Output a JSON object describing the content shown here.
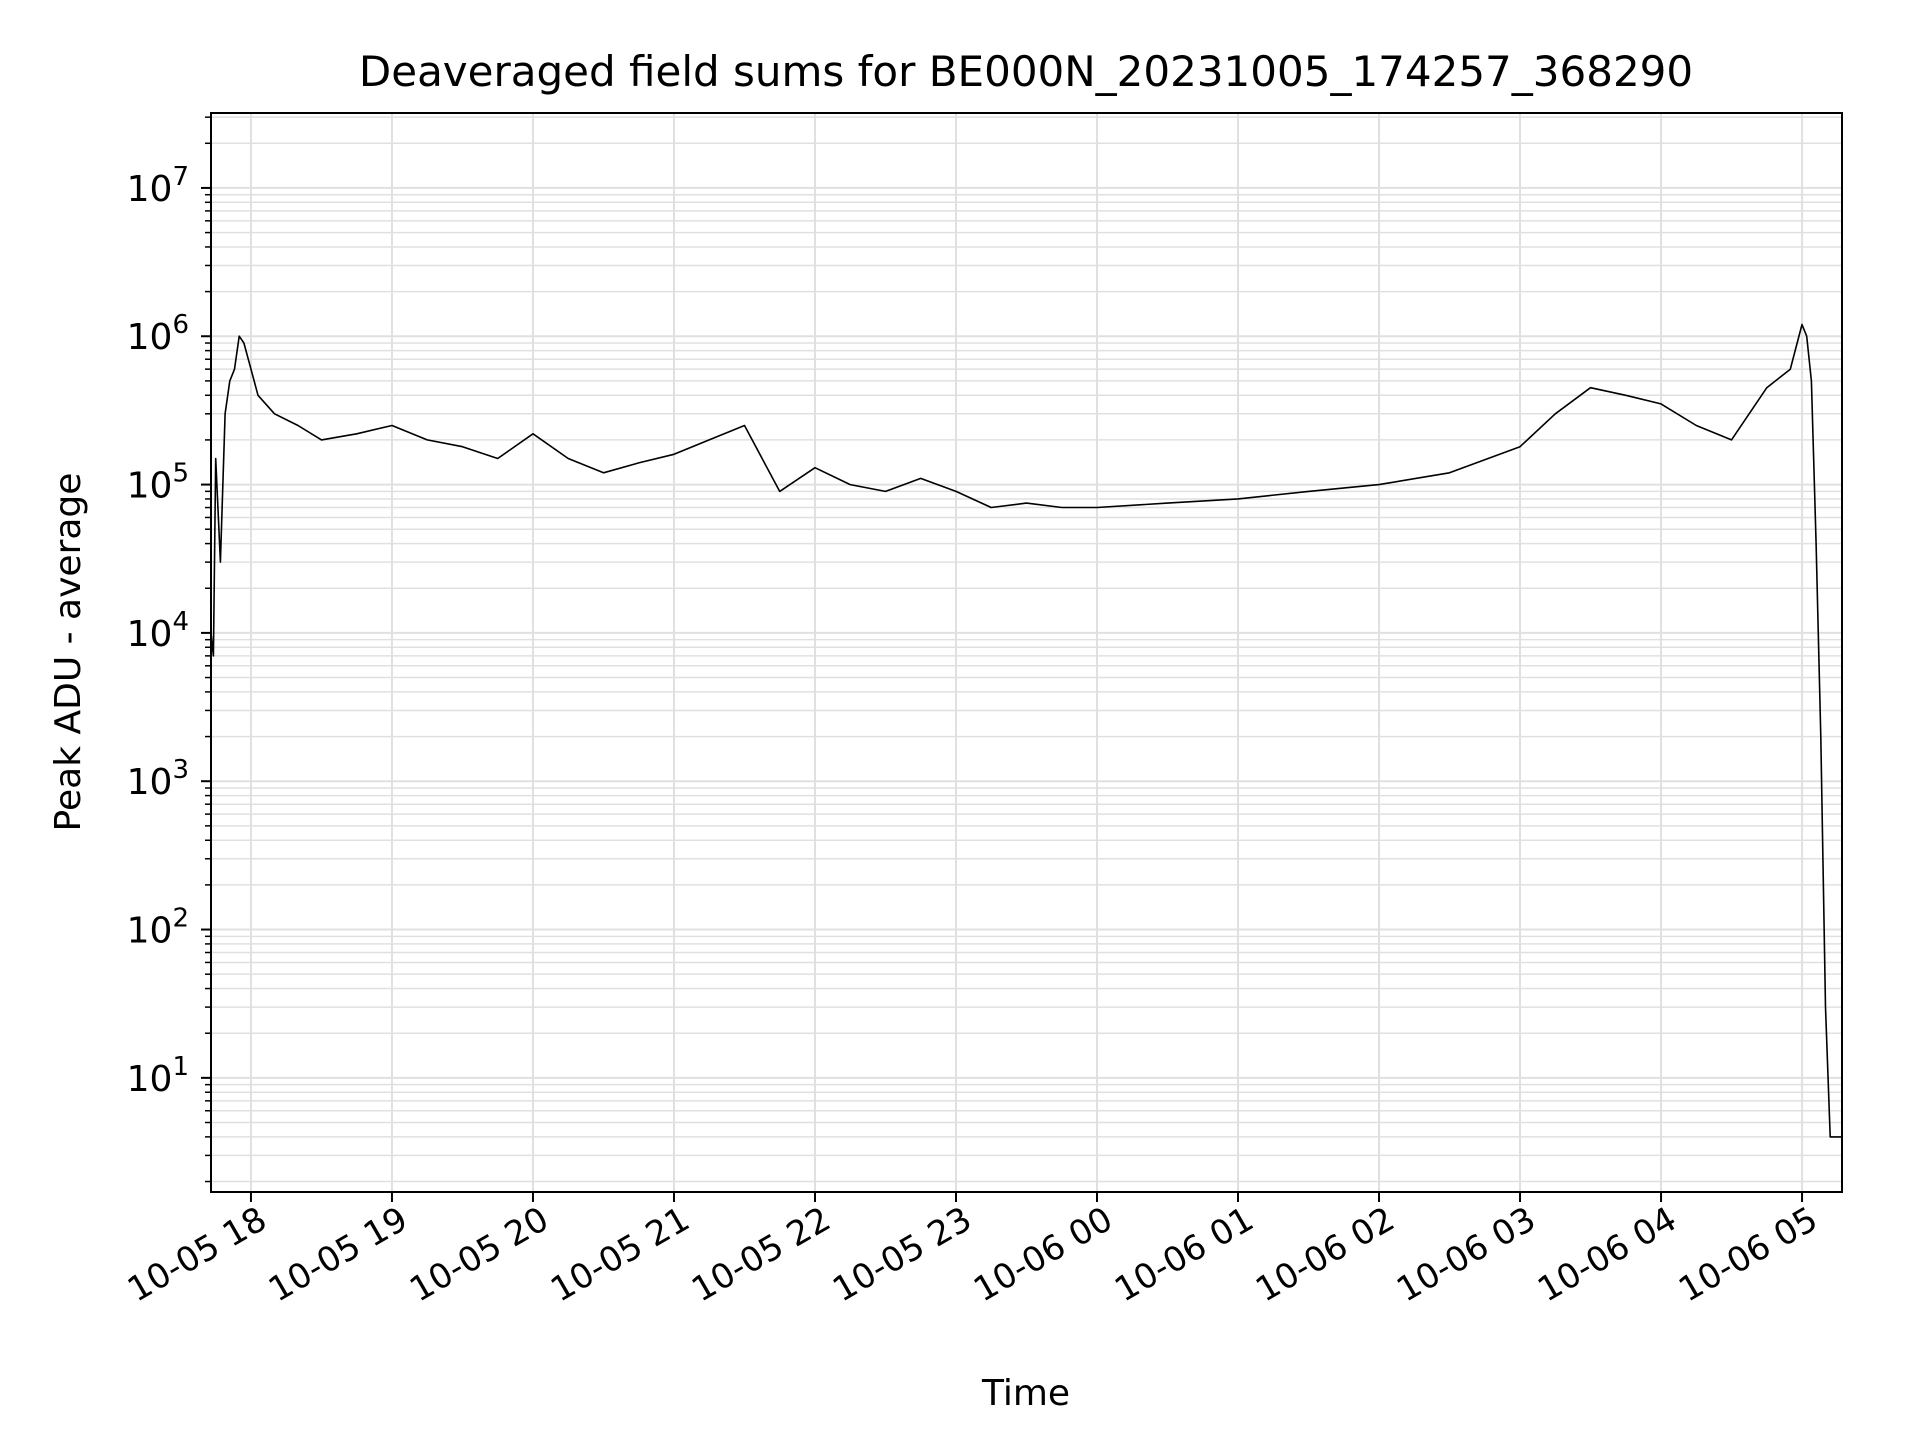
{
  "chart_data": {
    "type": "line",
    "title": "Deaveraged field sums for BE000N_20231005_174257_368290",
    "xlabel": "Time",
    "ylabel": "Peak ADU - average",
    "y_scale": "log",
    "ylim": [
      1.7,
      32000000
    ],
    "xlim": [
      "2023-10-05 17:43",
      "2023-10-06 05:17"
    ],
    "grid": true,
    "line_color": "#000000",
    "grid_color": "#e0e0e0",
    "x_ticks": [
      {
        "value": "2023-10-05 18:00",
        "label": "10-05 18"
      },
      {
        "value": "2023-10-05 19:00",
        "label": "10-05 19"
      },
      {
        "value": "2023-10-05 20:00",
        "label": "10-05 20"
      },
      {
        "value": "2023-10-05 21:00",
        "label": "10-05 21"
      },
      {
        "value": "2023-10-05 22:00",
        "label": "10-05 22"
      },
      {
        "value": "2023-10-05 23:00",
        "label": "10-05 23"
      },
      {
        "value": "2023-10-06 00:00",
        "label": "10-06 00"
      },
      {
        "value": "2023-10-06 01:00",
        "label": "10-06 01"
      },
      {
        "value": "2023-10-06 02:00",
        "label": "10-06 02"
      },
      {
        "value": "2023-10-06 03:00",
        "label": "10-06 03"
      },
      {
        "value": "2023-10-06 04:00",
        "label": "10-06 04"
      },
      {
        "value": "2023-10-06 05:00",
        "label": "10-06 05"
      }
    ],
    "y_ticks": [
      {
        "value": 10,
        "base": "10",
        "exp": "1"
      },
      {
        "value": 100,
        "base": "10",
        "exp": "2"
      },
      {
        "value": 1000,
        "base": "10",
        "exp": "3"
      },
      {
        "value": 10000,
        "base": "10",
        "exp": "4"
      },
      {
        "value": 100000,
        "base": "10",
        "exp": "5"
      },
      {
        "value": 1000000,
        "base": "10",
        "exp": "6"
      },
      {
        "value": 10000000,
        "base": "10",
        "exp": "7"
      }
    ],
    "series": [
      {
        "x": [
          "2023-10-05 17:43",
          "2023-10-05 17:44",
          "2023-10-05 17:45",
          "2023-10-05 17:47",
          "2023-10-05 17:49",
          "2023-10-05 17:51",
          "2023-10-05 17:53",
          "2023-10-05 17:55",
          "2023-10-05 17:57",
          "2023-10-05 18:00",
          "2023-10-05 18:03",
          "2023-10-05 18:10",
          "2023-10-05 18:20",
          "2023-10-05 18:30",
          "2023-10-05 18:45",
          "2023-10-05 19:00",
          "2023-10-05 19:15",
          "2023-10-05 19:30",
          "2023-10-05 19:45",
          "2023-10-05 20:00",
          "2023-10-05 20:15",
          "2023-10-05 20:30",
          "2023-10-05 20:45",
          "2023-10-05 21:00",
          "2023-10-05 21:15",
          "2023-10-05 21:30",
          "2023-10-05 21:45",
          "2023-10-05 22:00",
          "2023-10-05 22:15",
          "2023-10-05 22:30",
          "2023-10-05 22:45",
          "2023-10-05 23:00",
          "2023-10-05 23:15",
          "2023-10-05 23:30",
          "2023-10-05 23:45",
          "2023-10-06 00:00",
          "2023-10-06 00:30",
          "2023-10-06 01:00",
          "2023-10-06 01:30",
          "2023-10-06 02:00",
          "2023-10-06 02:30",
          "2023-10-06 03:00",
          "2023-10-06 03:15",
          "2023-10-06 03:30",
          "2023-10-06 03:45",
          "2023-10-06 04:00",
          "2023-10-06 04:15",
          "2023-10-06 04:30",
          "2023-10-06 04:45",
          "2023-10-06 04:55",
          "2023-10-06 05:00",
          "2023-10-06 05:02",
          "2023-10-06 05:04",
          "2023-10-06 05:06",
          "2023-10-06 05:08",
          "2023-10-06 05:10",
          "2023-10-06 05:12",
          "2023-10-06 05:14",
          "2023-10-06 05:17"
        ],
        "y": [
          10000,
          7000,
          150000,
          30000,
          300000,
          500000,
          600000,
          1000000,
          900000,
          600000,
          400000,
          300000,
          250000,
          200000,
          220000,
          250000,
          200000,
          180000,
          150000,
          220000,
          150000,
          120000,
          140000,
          160000,
          200000,
          250000,
          90000,
          130000,
          100000,
          90000,
          110000,
          90000,
          70000,
          75000,
          70000,
          70000,
          75000,
          80000,
          90000,
          100000,
          120000,
          180000,
          300000,
          450000,
          400000,
          350000,
          250000,
          200000,
          450000,
          600000,
          1200000,
          1000000,
          500000,
          40000,
          2000,
          30,
          4,
          4,
          4
        ]
      }
    ]
  }
}
